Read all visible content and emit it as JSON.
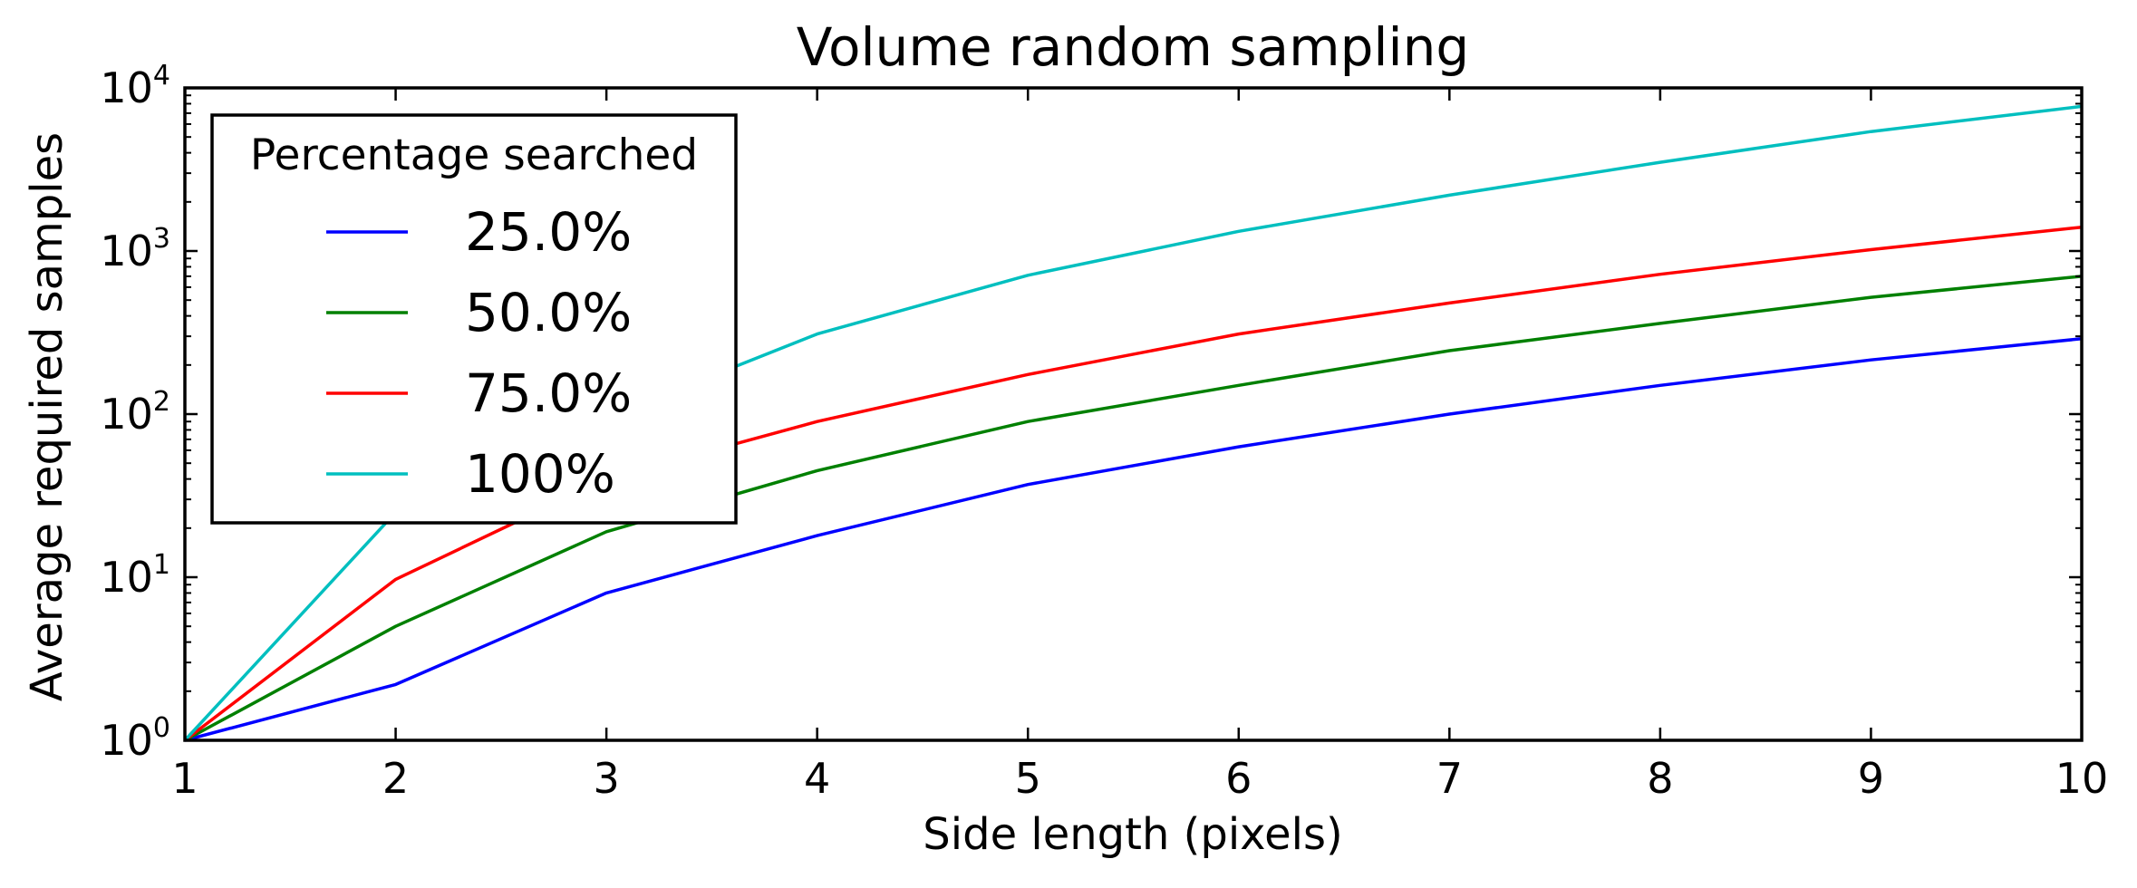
{
  "chart_data": {
    "type": "line",
    "title": "Volume random sampling",
    "xlabel": "Side length (pixels)",
    "ylabel": "Average required samples",
    "x": [
      1,
      2,
      3,
      4,
      5,
      6,
      7,
      8,
      9,
      10
    ],
    "xlim": [
      1,
      10
    ],
    "ylim": [
      1,
      10000
    ],
    "yscale": "log",
    "x_ticks": [
      "1",
      "2",
      "3",
      "4",
      "5",
      "6",
      "7",
      "8",
      "9",
      "10"
    ],
    "y_ticks": [
      {
        "base": "10",
        "exp": "0"
      },
      {
        "base": "10",
        "exp": "1"
      },
      {
        "base": "10",
        "exp": "2"
      },
      {
        "base": "10",
        "exp": "3"
      },
      {
        "base": "10",
        "exp": "4"
      }
    ],
    "grid": false,
    "legend": {
      "title": "Percentage searched",
      "position": "upper-left"
    },
    "series": [
      {
        "name": "25.0%",
        "color": "#0000ff",
        "values": [
          1,
          2.2,
          8,
          18,
          37,
          63,
          100,
          150,
          215,
          290
        ]
      },
      {
        "name": "50.0%",
        "color": "#008000",
        "values": [
          1,
          5,
          19,
          45,
          90,
          150,
          245,
          360,
          520,
          700
        ]
      },
      {
        "name": "75.0%",
        "color": "#ff0000",
        "values": [
          1,
          9.7,
          40,
          90,
          175,
          310,
          480,
          720,
          1020,
          1400
        ]
      },
      {
        "name": "100%",
        "color": "#00bfbf",
        "values": [
          1,
          25,
          95,
          310,
          710,
          1320,
          2200,
          3500,
          5400,
          7700
        ]
      }
    ]
  }
}
